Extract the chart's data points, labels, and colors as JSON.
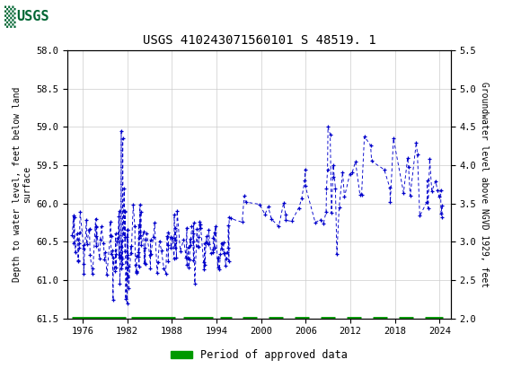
{
  "title": "USGS 410243071560101 S 48519. 1",
  "ylabel_left": "Depth to water level, feet below land\nsurface",
  "ylabel_right": "Groundwater level above NGVD 1929, feet",
  "ylim_left": [
    61.5,
    58.0
  ],
  "ylim_right": [
    2.0,
    5.5
  ],
  "xlim": [
    1974,
    2025.5
  ],
  "yticks_left": [
    58.0,
    58.5,
    59.0,
    59.5,
    60.0,
    60.5,
    61.0,
    61.5
  ],
  "yticks_right": [
    2.0,
    2.5,
    3.0,
    3.5,
    4.0,
    4.5,
    5.0,
    5.5
  ],
  "xticks": [
    1976,
    1982,
    1988,
    1994,
    2000,
    2006,
    2012,
    2018,
    2024
  ],
  "header_color": "#006633",
  "data_color": "#0000cc",
  "approved_color": "#009900",
  "legend_label": "Period of approved data",
  "background_color": "#ffffff",
  "grid_color": "#cccccc"
}
